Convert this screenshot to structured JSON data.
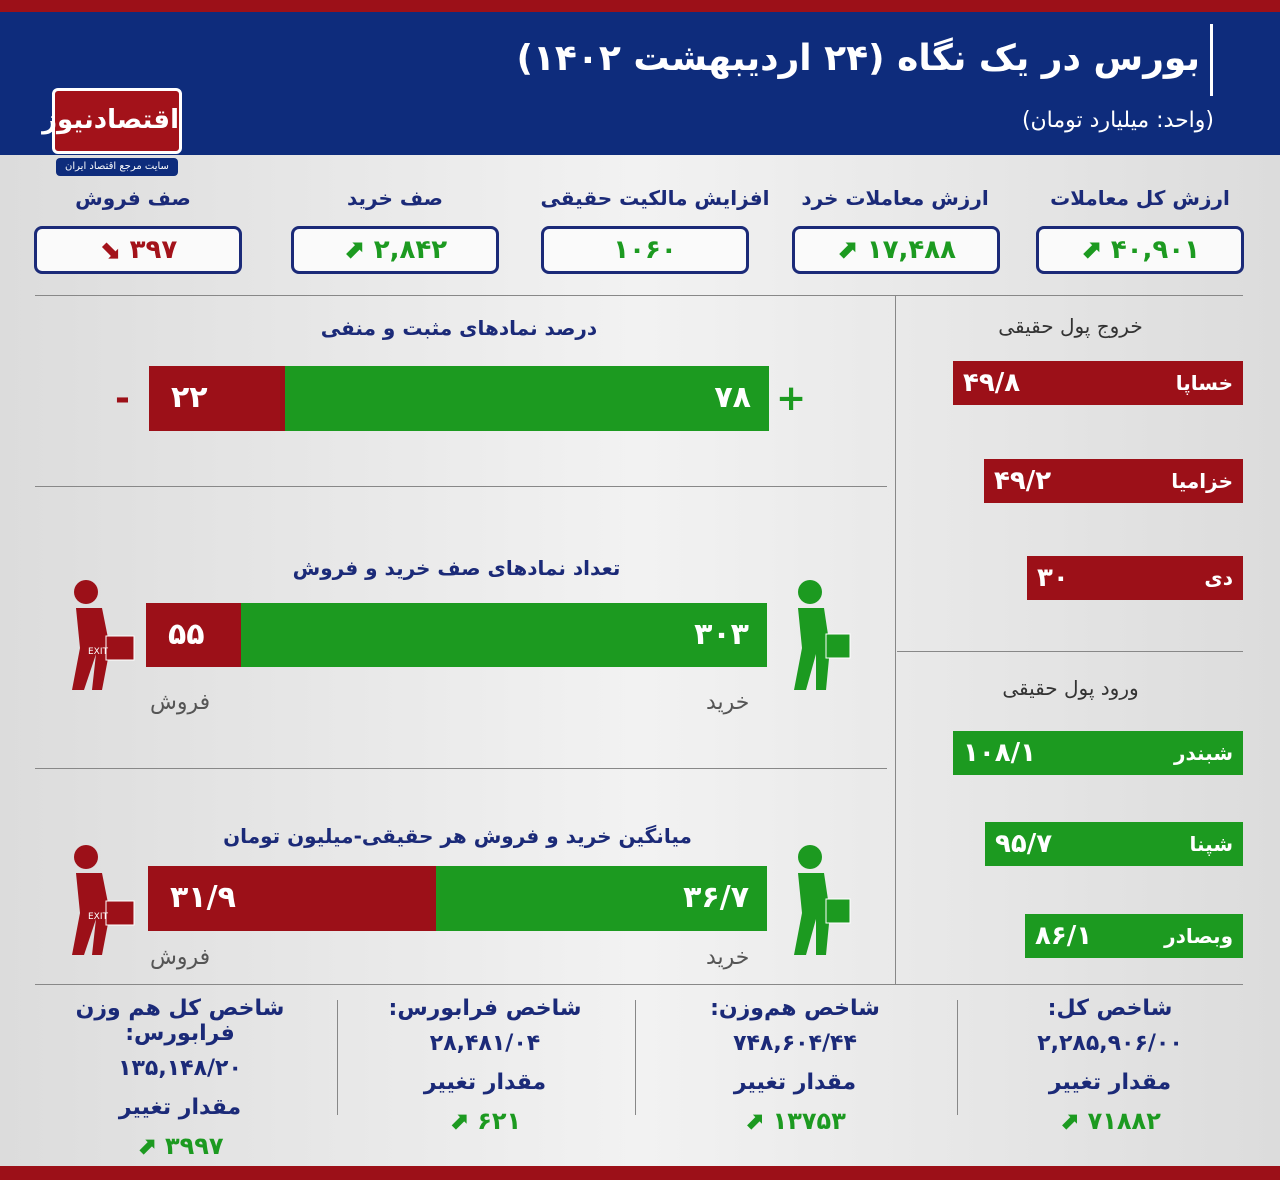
{
  "header": {
    "title": "بورس در یک نگاه (۲۴ اردیبهشت ۱۴۰۲)",
    "unit": "(واحد: میلیارد تومان)",
    "logo": "اقتصادنیوز",
    "logo_sub": "سایت مرجع اقتصاد ایران"
  },
  "cards": [
    {
      "label": "ارزش کل معاملات",
      "value": "۴۰,۹۰۱",
      "trend": "up"
    },
    {
      "label": "ارزش معاملات خرد",
      "value": "۱۷,۴۸۸",
      "trend": "up"
    },
    {
      "label": "افزایش مالکیت حقیقی",
      "value": "۱۰۶۰",
      "trend": "none"
    },
    {
      "label": "صف خرید",
      "value": "۲,۸۴۲",
      "trend": "up"
    },
    {
      "label": "صف فروش",
      "value": "۳۹۷",
      "trend": "down"
    }
  ],
  "positive_negative": {
    "title": "درصد نمادهای مثبت و منفی",
    "positive": "۷۸",
    "negative": "۲۲",
    "plus": "+",
    "minus": "-",
    "positive_pct": 78
  },
  "queues": {
    "title": "تعداد نمادهای صف خرید و فروش",
    "buy": "۳۰۳",
    "sell": "۵۵",
    "buy_label": "خرید",
    "sell_label": "فروش",
    "buy_count": 303,
    "sell_count": 55
  },
  "averages": {
    "title": "میانگین خرید و فروش هر حقیقی-میلیون تومان",
    "buy": "۳۶/۷",
    "sell": "۳۱/۹",
    "buy_label": "خرید",
    "sell_label": "فروش",
    "buy_value": 36.7,
    "sell_value": 31.9
  },
  "outflow": {
    "title": "خروج پول حقیقی",
    "items": [
      {
        "name": "خساپا",
        "value": "۴۹/۸"
      },
      {
        "name": "خزامیا",
        "value": "۴۹/۲"
      },
      {
        "name": "دی",
        "value": "۳۰"
      }
    ]
  },
  "inflow": {
    "title": "ورود پول حقیقی",
    "items": [
      {
        "name": "شبندر",
        "value": "۱۰۸/۱"
      },
      {
        "name": "شپنا",
        "value": "۹۵/۷"
      },
      {
        "name": "وبصادر",
        "value": "۸۶/۱"
      }
    ]
  },
  "indices": [
    {
      "name": "شاخص کل:",
      "value": "۲,۲۸۵,۹۰۶/۰۰",
      "change_label": "مقدار تغییر",
      "change": "۷۱۸۸۲"
    },
    {
      "name": "شاخص هم‌وزن:",
      "value": "۷۴۸,۶۰۴/۴۴",
      "change_label": "مقدار تغییر",
      "change": "۱۳۷۵۳"
    },
    {
      "name": "شاخص فرابورس:",
      "value": "۲۸,۴۸۱/۰۴",
      "change_label": "مقدار تغییر",
      "change": "۶۲۱"
    },
    {
      "name": "شاخص کل هم وزن فرابورس:",
      "value": "۱۳۵,۱۴۸/۲۰",
      "change_label": "مقدار تغییر",
      "change": "۳۹۹۷"
    }
  ],
  "colors": {
    "navy": "#0e2c7c",
    "red": "#9c1018",
    "green": "#1c9a20"
  }
}
